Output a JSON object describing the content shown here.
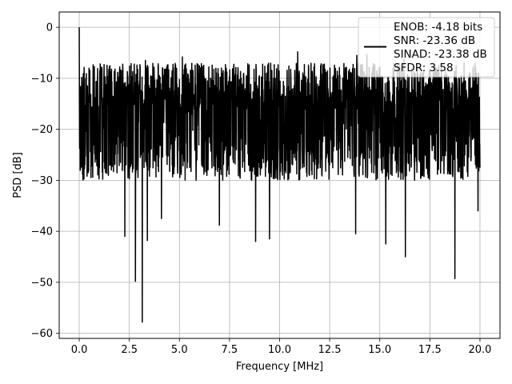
{
  "chart_data": {
    "type": "line",
    "title": "",
    "xlabel": "Frequency [MHz]",
    "ylabel": "PSD [dB]",
    "xlim": [
      -1,
      21
    ],
    "ylim": [
      -61,
      3
    ],
    "x_ticks": [
      0.0,
      2.5,
      5.0,
      7.5,
      10.0,
      12.5,
      15.0,
      17.5,
      20.0
    ],
    "x_tick_labels": [
      "0.0",
      "2.5",
      "5.0",
      "7.5",
      "10.0",
      "12.5",
      "15.0",
      "17.5",
      "20.0"
    ],
    "y_ticks": [
      0,
      -10,
      -20,
      -30,
      -40,
      -50,
      -60
    ],
    "y_tick_labels": [
      "0",
      "−10",
      "−20",
      "−30",
      "−40",
      "−50",
      "−60"
    ],
    "grid": true,
    "legend_position": "top-right",
    "legend_text": [
      "ENOB: -4.18 bits",
      "SNR: -23.36 dB",
      "SINAD: -23.38 dB",
      "SFDR: 3.58"
    ],
    "series": [
      {
        "color": "#000000",
        "x_range": [
          0,
          20
        ],
        "num_points": 2048,
        "noise_floor_db": -17,
        "typical_min_db": -30,
        "typical_max_db": -7,
        "peaks": [
          {
            "x": 0.0,
            "y": 0.0
          },
          {
            "x": 3.3,
            "y": -6.5
          },
          {
            "x": 5.15,
            "y": -5.8
          },
          {
            "x": 10.9,
            "y": -4.8
          },
          {
            "x": 13.85,
            "y": -5.5
          },
          {
            "x": 14.35,
            "y": -5.3
          },
          {
            "x": 16.2,
            "y": -6.2
          },
          {
            "x": 18.75,
            "y": -6.3
          }
        ],
        "dips": [
          {
            "x": 2.28,
            "y": -41.0
          },
          {
            "x": 2.8,
            "y": -49.8
          },
          {
            "x": 3.15,
            "y": -57.8
          },
          {
            "x": 3.4,
            "y": -41.8
          },
          {
            "x": 4.1,
            "y": -37.5
          },
          {
            "x": 7.0,
            "y": -38.8
          },
          {
            "x": 8.8,
            "y": -42.0
          },
          {
            "x": 9.5,
            "y": -41.5
          },
          {
            "x": 13.8,
            "y": -40.5
          },
          {
            "x": 15.3,
            "y": -42.5
          },
          {
            "x": 16.28,
            "y": -45.0
          },
          {
            "x": 18.75,
            "y": -49.3
          },
          {
            "x": 19.9,
            "y": -36.0
          }
        ]
      }
    ]
  }
}
